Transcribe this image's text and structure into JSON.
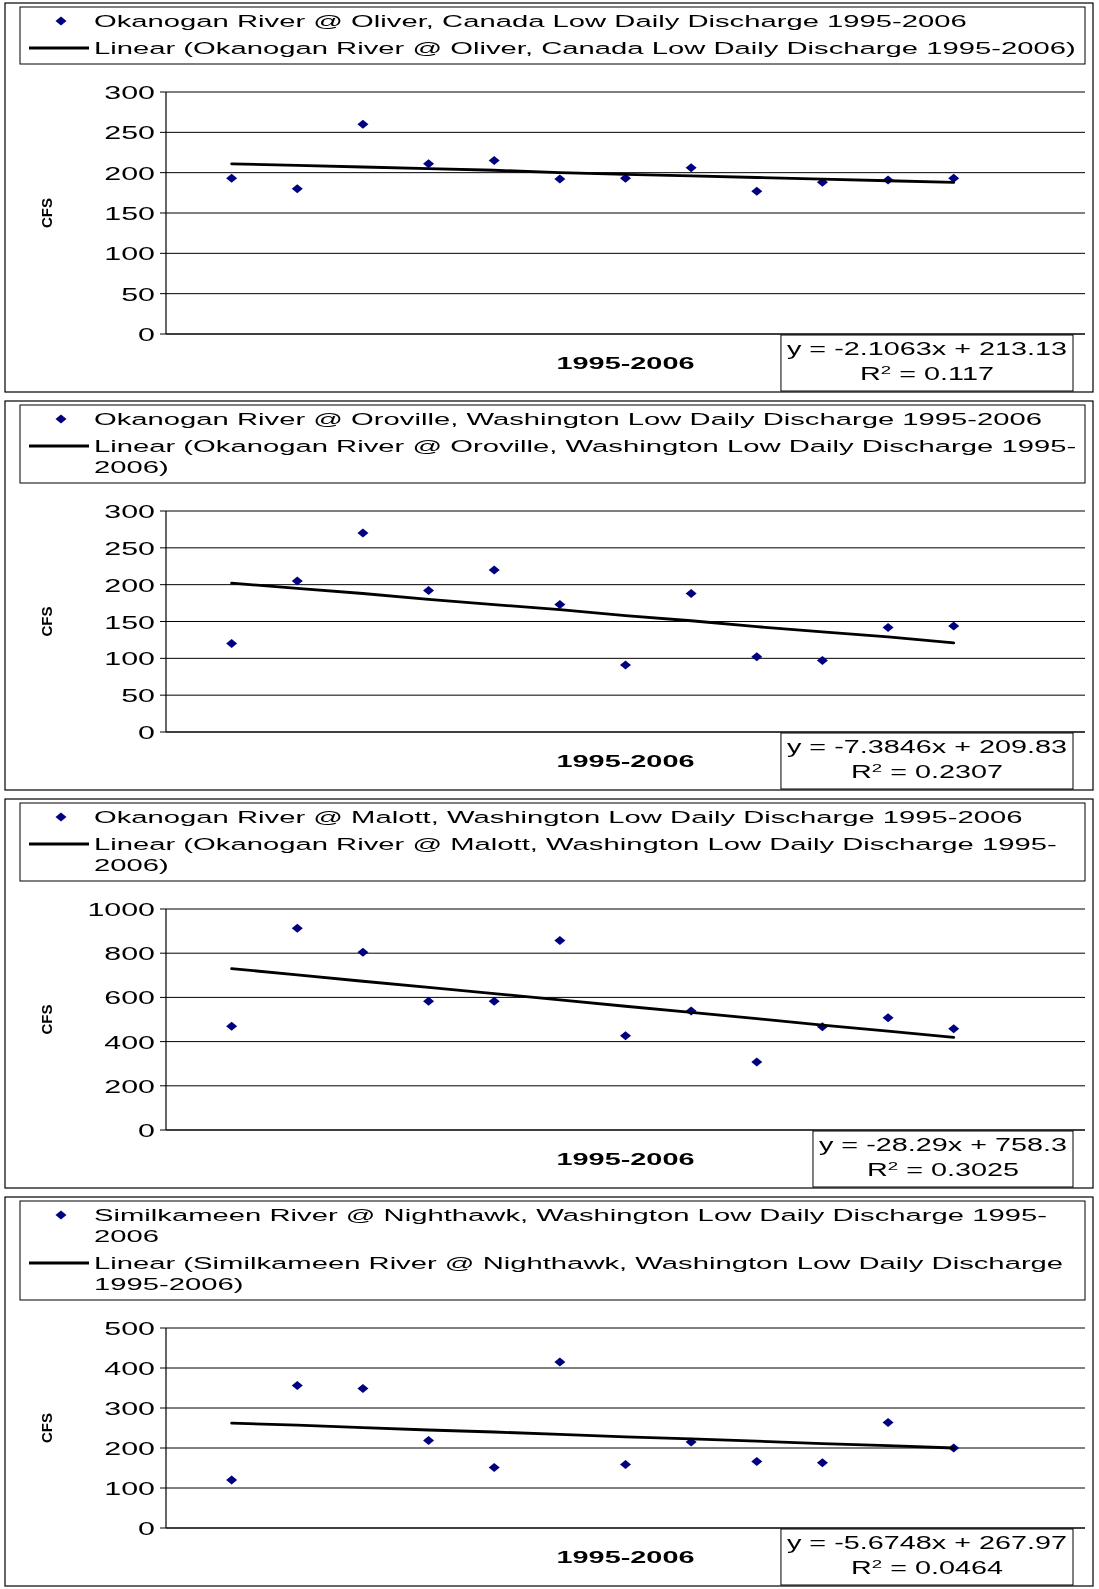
{
  "chart_data": [
    {
      "type": "scatter",
      "xlabel": "1995-2006",
      "ylabel": "CFS",
      "categories": [
        null,
        null,
        null,
        null,
        null,
        null,
        null,
        null,
        null,
        null,
        null,
        null
      ],
      "ylim": [
        0,
        300
      ],
      "yticks": [
        0,
        50,
        100,
        150,
        200,
        250,
        300
      ],
      "grid": "y",
      "legend": "top",
      "line_style": "solid",
      "series": [
        {
          "name": "Okanogan River @ Oliver, Canada Low Daily Discharge 1995-2006",
          "color": "#000080",
          "marker": "diamond",
          "values": [
            193,
            180,
            260,
            211,
            215,
            192,
            193,
            206,
            177,
            188,
            191,
            193
          ]
        },
        {
          "type": "line",
          "name": "Linear (Okanogan River @ Oliver, Canada Low Daily Discharge 1995-2006)",
          "color": "#000000",
          "marker": "none",
          "values": [
            211,
            209,
            207,
            205,
            203,
            200,
            198,
            196,
            194,
            192,
            190,
            188
          ]
        }
      ],
      "annotations": [
        "y = -2.1063x + 213.13",
        "R$^{2}$ = 0.117"
      ]
    },
    {
      "type": "scatter",
      "xlabel": "1995-2006",
      "ylabel": "CFS",
      "categories": [
        null,
        null,
        null,
        null,
        null,
        null,
        null,
        null,
        null,
        null,
        null,
        null
      ],
      "ylim": [
        0,
        300
      ],
      "yticks": [
        0,
        50,
        100,
        150,
        200,
        250,
        300
      ],
      "grid": "y",
      "legend": "top",
      "line_style": "solid",
      "series": [
        {
          "name": "Okanogan River @ Oroville, Washington Low Daily Discharge 1995-2006",
          "color": "#000080",
          "marker": "diamond",
          "values": [
            120,
            205,
            270,
            192,
            220,
            173,
            91,
            188,
            102,
            97,
            142,
            144
          ]
        },
        {
          "type": "line",
          "name": "Linear (Okanogan River @ Oroville, Washington Low Daily Discharge 1995-2006)",
          "color": "#000000",
          "marker": "none",
          "values": [
            202,
            195,
            188,
            180,
            173,
            166,
            158,
            151,
            143,
            136,
            129,
            121
          ]
        }
      ],
      "annotations": [
        "y = -7.3846x + 209.83",
        "R$^{2}$ = 0.2307"
      ]
    },
    {
      "type": "scatter",
      "xlabel": "1995-2006",
      "ylabel": "CFS",
      "categories": [
        null,
        null,
        null,
        null,
        null,
        null,
        null,
        null,
        null,
        null,
        null,
        null
      ],
      "ylim": [
        0,
        1000
      ],
      "yticks": [
        0,
        200,
        400,
        600,
        800,
        1000
      ],
      "grid": "y",
      "legend": "top",
      "line_style": "solid",
      "series": [
        {
          "name": "Okanogan River @ Malott, Washington Low Daily Discharge 1995-2006",
          "color": "#000080",
          "marker": "diamond",
          "values": [
            470,
            913,
            804,
            583,
            583,
            857,
            427,
            539,
            308,
            467,
            508,
            458
          ]
        },
        {
          "type": "line",
          "name": "Linear (Okanogan River @ Malott, Washington Low Daily Discharge 1995-2006)",
          "color": "#000000",
          "marker": "none",
          "values": [
            730,
            702,
            673,
            645,
            617,
            589,
            560,
            532,
            504,
            475,
            447,
            419
          ]
        }
      ],
      "annotations": [
        "y = -28.29x + 758.3",
        "R$^{2}$ = 0.3025"
      ]
    },
    {
      "type": "scatter",
      "xlabel": "1995-2006",
      "ylabel": "CFS",
      "categories": [
        null,
        null,
        null,
        null,
        null,
        null,
        null,
        null,
        null,
        null,
        null,
        null
      ],
      "ylim": [
        0,
        500
      ],
      "yticks": [
        0,
        100,
        200,
        300,
        400,
        500
      ],
      "grid": "y",
      "legend": "top",
      "line_style": "solid",
      "series": [
        {
          "name": "Similkameen River @ Nighthawk, Washington Low Daily Discharge 1995-2006",
          "color": "#000080",
          "marker": "diamond",
          "values": [
            120,
            356,
            349,
            219,
            151,
            415,
            159,
            215,
            166,
            163,
            264,
            200
          ]
        },
        {
          "type": "line",
          "name": "Linear (Similkameen River @ Nighthawk, Washington Low Daily Discharge 1995-2006)",
          "color": "#000000",
          "marker": "none",
          "values": [
            262,
            257,
            251,
            245,
            240,
            234,
            228,
            223,
            217,
            211,
            206,
            200
          ]
        }
      ],
      "annotations": [
        "y = -5.6748x + 267.97",
        "R$^{2}$ = 0.0464"
      ]
    }
  ]
}
